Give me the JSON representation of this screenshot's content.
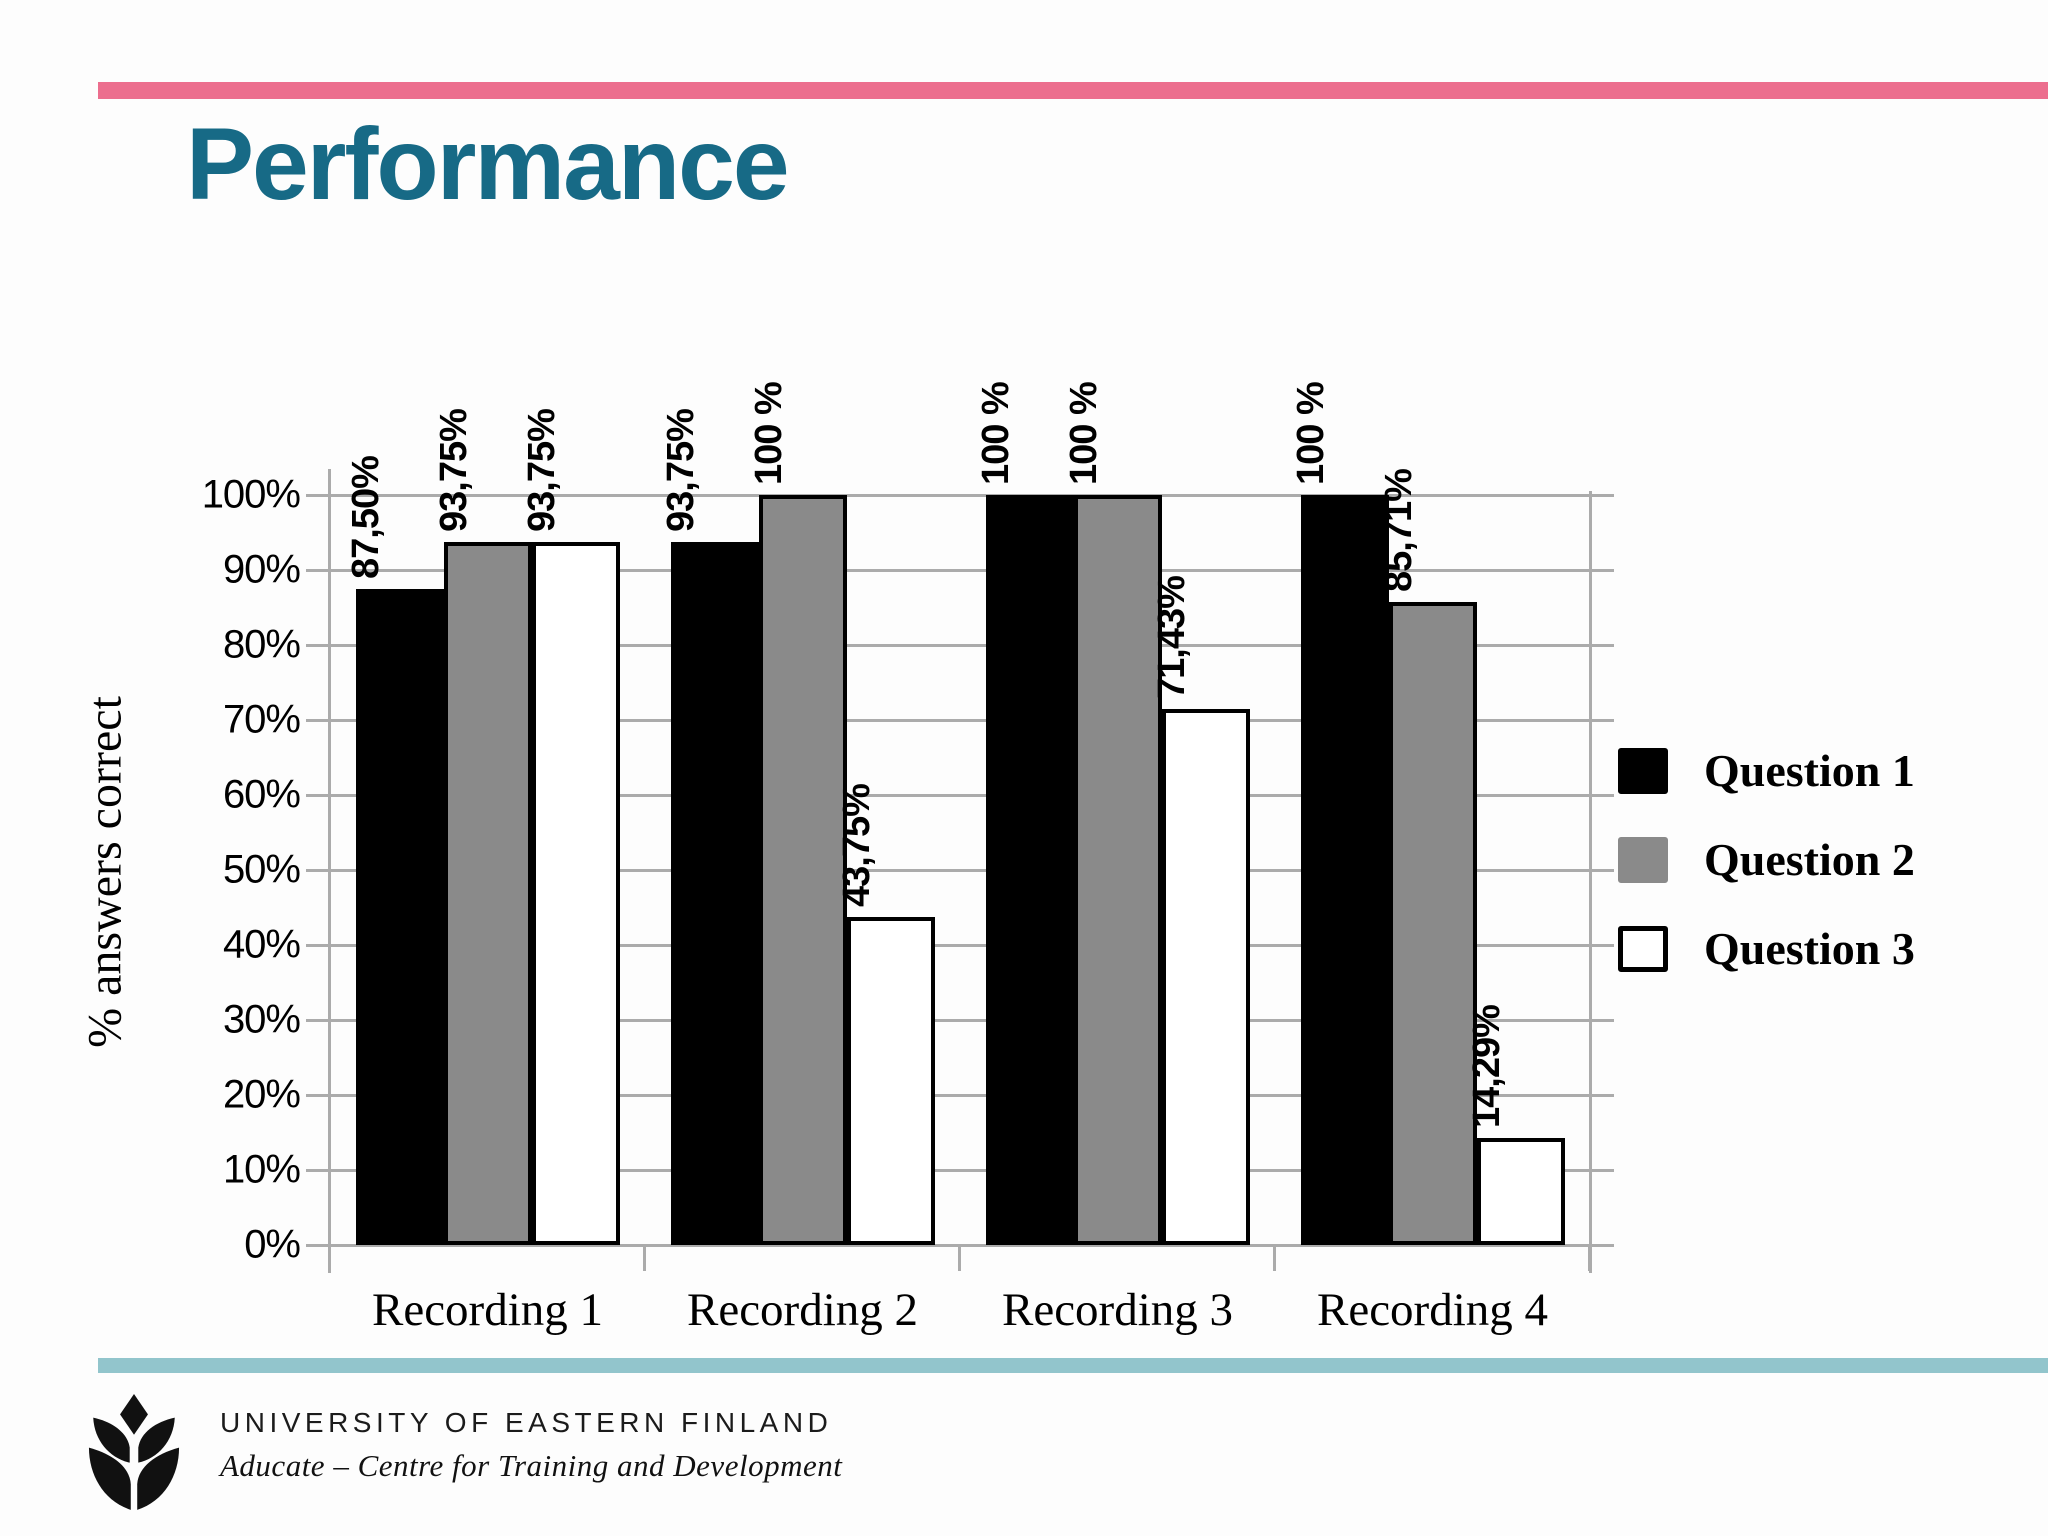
{
  "slide": {
    "title": "Performance",
    "title_color": "#176a86",
    "accent_top_color": "#ec6e8e",
    "accent_bottom_color": "#92c5cc",
    "background_color": "#fdfdfd"
  },
  "chart_data": {
    "type": "bar",
    "title": "",
    "xlabel": "",
    "ylabel": "% answers correct",
    "ylim": [
      0,
      100
    ],
    "yticks": [
      "0%",
      "10%",
      "20%",
      "30%",
      "40%",
      "50%",
      "60%",
      "70%",
      "80%",
      "90%",
      "100%"
    ],
    "grid": true,
    "legend_position": "right",
    "categories": [
      "Recording 1",
      "Recording 2",
      "Recording 3",
      "Recording 4"
    ],
    "series": [
      {
        "name": "Question 1",
        "color": "#000000",
        "values": [
          87.5,
          93.75,
          100,
          100
        ],
        "labels": [
          "87,50%",
          "93,75%",
          "100 %",
          "100 %"
        ]
      },
      {
        "name": "Question 2",
        "color": "#8a8a8a",
        "values": [
          93.75,
          100,
          100,
          85.71
        ],
        "labels": [
          "93,75%",
          "100 %",
          "100 %",
          "85,71%"
        ]
      },
      {
        "name": "Question 3",
        "color": "#ffffff",
        "values": [
          93.75,
          43.75,
          71.43,
          14.29
        ],
        "labels": [
          "93,75%",
          "43,75%",
          "71,43%",
          "14,29%"
        ]
      }
    ]
  },
  "footer": {
    "logo": "uef-leaf-logo",
    "org": "UNIVERSITY OF EASTERN FINLAND",
    "dept": "Aducate – Centre for Training and Development"
  }
}
